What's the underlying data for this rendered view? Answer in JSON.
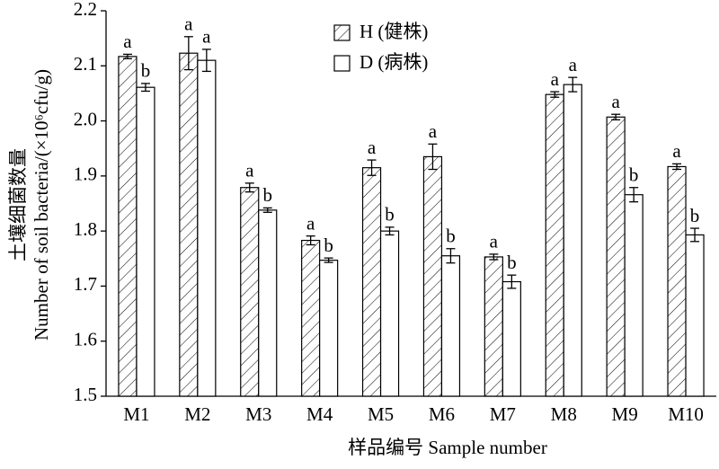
{
  "chart_data": {
    "type": "bar",
    "categories": [
      "M1",
      "M2",
      "M3",
      "M4",
      "M5",
      "M6",
      "M7",
      "M8",
      "M9",
      "M10"
    ],
    "series": [
      {
        "name": "H (健株)",
        "color": "#000000",
        "hatch": true,
        "values": [
          2.117,
          2.123,
          1.879,
          1.783,
          1.915,
          1.935,
          1.753,
          2.048,
          2.007,
          1.917
        ],
        "errors": [
          0.004,
          0.03,
          0.008,
          0.008,
          0.014,
          0.023,
          0.005,
          0.005,
          0.005,
          0.005
        ],
        "labels": [
          "a",
          "a",
          "a",
          "a",
          "a",
          "a",
          "a",
          "a",
          "a",
          "a"
        ]
      },
      {
        "name": "D (病株)",
        "color": "#000000",
        "hatch": false,
        "values": [
          2.061,
          2.11,
          1.838,
          1.747,
          1.8,
          1.755,
          1.708,
          2.066,
          1.866,
          1.793
        ],
        "errors": [
          0.007,
          0.02,
          0.004,
          0.004,
          0.007,
          0.013,
          0.012,
          0.013,
          0.013,
          0.012
        ],
        "labels": [
          "b",
          "a",
          "b",
          "b",
          "b",
          "b",
          "b",
          "a",
          "b",
          "b"
        ]
      }
    ],
    "ylim": [
      1.5,
      2.2
    ],
    "yticks": [
      1.5,
      1.6,
      1.7,
      1.8,
      1.9,
      {
        "value": 2,
        "label": "2.0"
      },
      2.1,
      2.2
    ],
    "ylabel": [
      "土壤细菌数量",
      "Number of soil bacteria/(×10⁶cfu/g)"
    ],
    "xlabel": "样品编号 Sample number",
    "legend": "upper center"
  }
}
